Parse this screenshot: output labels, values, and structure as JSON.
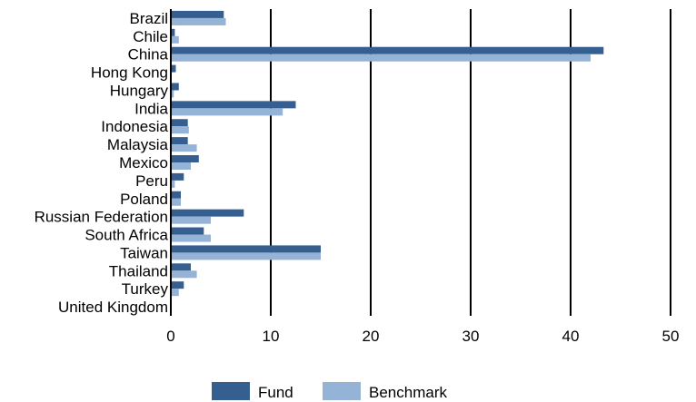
{
  "chart_data": {
    "type": "bar",
    "orientation": "horizontal",
    "categories": [
      "Brazil",
      "Chile",
      "China",
      "Hong Kong",
      "Hungary",
      "India",
      "Indonesia",
      "Malaysia",
      "Mexico",
      "Peru",
      "Poland",
      "Russian Federation",
      "South Africa",
      "Taiwan",
      "Thailand",
      "Turkey",
      "United Kingdom"
    ],
    "series": [
      {
        "name": "Fund",
        "color": "#355f91",
        "values": [
          5.3,
          0.4,
          43.3,
          0.5,
          0.8,
          12.5,
          1.7,
          1.7,
          2.8,
          1.3,
          1.0,
          7.3,
          3.3,
          15.0,
          2.0,
          1.3,
          0.0
        ]
      },
      {
        "name": "Benchmark",
        "color": "#95b3d7",
        "values": [
          5.5,
          0.8,
          42.0,
          0.0,
          0.3,
          11.2,
          1.8,
          2.6,
          2.0,
          0.4,
          1.0,
          4.0,
          4.0,
          15.0,
          2.6,
          0.8,
          0.0
        ]
      }
    ],
    "xlim": [
      0,
      50
    ],
    "xticks": [
      0,
      10,
      20,
      30,
      40,
      50
    ],
    "grid": "vertical",
    "legend": "bottom-center",
    "title": "",
    "xlabel": "",
    "ylabel": ""
  }
}
